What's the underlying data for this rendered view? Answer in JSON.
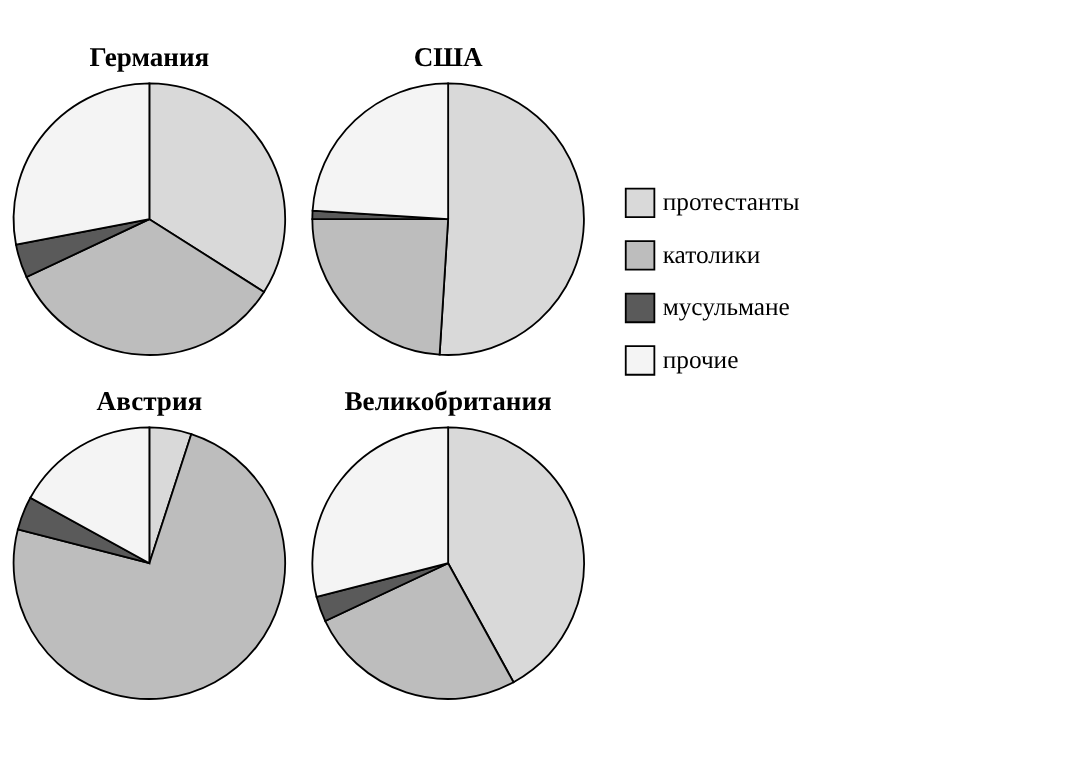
{
  "chart_data": [
    {
      "type": "pie",
      "title": "Германия",
      "categories": [
        "протестанты",
        "католики",
        "мусульмане",
        "прочие"
      ],
      "values": [
        34,
        34,
        4,
        28
      ],
      "colors": [
        "#d9d9d9",
        "#bdbdbd",
        "#5a5a5a",
        "#f4f4f4"
      ],
      "legend": "right"
    },
    {
      "type": "pie",
      "title": "США",
      "categories": [
        null,
        null,
        null,
        null
      ],
      "values": [
        51,
        24,
        1,
        24
      ],
      "colors": [
        "#d9d9d9",
        "#bdbdbd",
        "#5a5a5a",
        "#f4f4f4"
      ]
    },
    {
      "type": "pie",
      "title": "Австрия",
      "categories": [
        null,
        null,
        null,
        null
      ],
      "values": [
        5,
        74,
        4,
        17
      ],
      "colors": [
        "#d9d9d9",
        "#bdbdbd",
        "#5a5a5a",
        "#f4f4f4"
      ]
    },
    {
      "type": "pie",
      "title": "Великобритания",
      "categories": [
        null,
        null,
        null,
        null
      ],
      "values": [
        42,
        26,
        3,
        29
      ],
      "colors": [
        "#d9d9d9",
        "#bdbdbd",
        "#5a5a5a",
        "#f4f4f4"
      ]
    }
  ]
}
